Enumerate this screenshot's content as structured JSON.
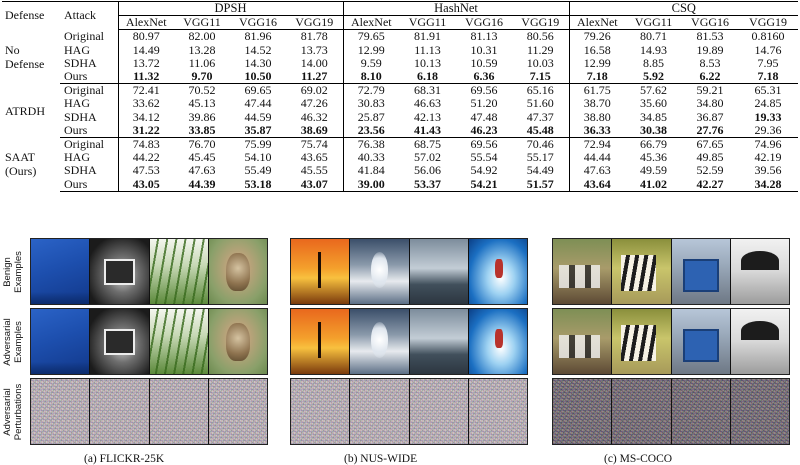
{
  "table": {
    "header": {
      "defense": "Defense",
      "attack": "Attack",
      "groups": [
        "DPSH",
        "HashNet",
        "CSQ"
      ],
      "models": [
        "AlexNet",
        "VGG11",
        "VGG16",
        "VGG19"
      ]
    },
    "blocks": [
      {
        "defense": "No Defense",
        "rows": [
          {
            "attack": "Original",
            "values": [
              "80.97",
              "82.00",
              "81.96",
              "81.78",
              "79.65",
              "81.91",
              "81.13",
              "80.56",
              "79.26",
              "80.71",
              "81.53",
              "0.8160"
            ],
            "bold": []
          },
          {
            "attack": "HAG",
            "values": [
              "14.49",
              "13.28",
              "14.52",
              "13.73",
              "12.99",
              "11.13",
              "10.31",
              "11.29",
              "16.58",
              "14.93",
              "19.89",
              "14.76"
            ],
            "bold": []
          },
          {
            "attack": "SDHA",
            "values": [
              "13.72",
              "11.06",
              "14.30",
              "14.00",
              "9.59",
              "10.13",
              "10.59",
              "10.03",
              "12.99",
              "8.85",
              "8.53",
              "7.95"
            ],
            "bold": []
          },
          {
            "attack": "Ours",
            "values": [
              "11.32",
              "9.70",
              "10.50",
              "11.27",
              "8.10",
              "6.18",
              "6.36",
              "7.15",
              "7.18",
              "5.92",
              "6.22",
              "7.18"
            ],
            "bold": [
              0,
              1,
              2,
              3,
              4,
              5,
              6,
              7,
              8,
              9,
              10,
              11
            ]
          }
        ]
      },
      {
        "defense": "ATRDH",
        "rows": [
          {
            "attack": "Original",
            "values": [
              "72.41",
              "70.52",
              "69.65",
              "69.02",
              "72.79",
              "68.31",
              "69.56",
              "65.16",
              "61.75",
              "57.62",
              "59.21",
              "65.31"
            ],
            "bold": []
          },
          {
            "attack": "HAG",
            "values": [
              "33.62",
              "45.13",
              "47.44",
              "47.26",
              "30.83",
              "46.63",
              "51.20",
              "51.60",
              "38.70",
              "35.60",
              "34.80",
              "24.85"
            ],
            "bold": []
          },
          {
            "attack": "SDHA",
            "values": [
              "34.12",
              "39.86",
              "44.59",
              "46.32",
              "25.87",
              "42.13",
              "47.48",
              "47.37",
              "38.80",
              "34.85",
              "36.87",
              "19.33"
            ],
            "bold": [
              11
            ]
          },
          {
            "attack": "Ours",
            "values": [
              "31.22",
              "33.85",
              "35.87",
              "38.69",
              "23.56",
              "41.43",
              "46.23",
              "45.48",
              "36.33",
              "30.38",
              "27.76",
              "29.36"
            ],
            "bold": [
              0,
              1,
              2,
              3,
              4,
              5,
              6,
              7,
              8,
              9,
              10
            ]
          }
        ]
      },
      {
        "defense": "SAAT (Ours)",
        "rows": [
          {
            "attack": "Original",
            "values": [
              "74.83",
              "76.70",
              "75.99",
              "75.74",
              "76.38",
              "68.75",
              "69.56",
              "70.46",
              "72.94",
              "66.79",
              "67.65",
              "74.96"
            ],
            "bold": []
          },
          {
            "attack": "HAG",
            "values": [
              "44.22",
              "45.45",
              "54.10",
              "43.65",
              "40.33",
              "57.02",
              "55.54",
              "55.17",
              "44.44",
              "45.36",
              "49.85",
              "42.19"
            ],
            "bold": []
          },
          {
            "attack": "SDHA",
            "values": [
              "47.53",
              "47.63",
              "55.49",
              "45.55",
              "41.84",
              "56.06",
              "54.92",
              "54.49",
              "47.63",
              "49.59",
              "52.59",
              "39.56"
            ],
            "bold": []
          },
          {
            "attack": "Ours",
            "values": [
              "43.05",
              "44.39",
              "53.18",
              "43.07",
              "39.00",
              "53.37",
              "54.21",
              "51.57",
              "43.64",
              "41.02",
              "42.27",
              "34.28"
            ],
            "bold": [
              0,
              1,
              2,
              3,
              4,
              5,
              6,
              7,
              8,
              9,
              10,
              11
            ]
          }
        ]
      }
    ]
  },
  "figure": {
    "row_labels": [
      "Benign Examples",
      "Adversarial Examples",
      "Adversarial Perturbations"
    ],
    "panels": [
      {
        "caption": "(a) FLICKR-25K",
        "images": [
          "blue wall",
          "framed picture",
          "grass stems",
          "owl"
        ]
      },
      {
        "caption": "(b) NUS-WIDE",
        "images": [
          "sunset statue",
          "wave lighthouse",
          "sea",
          "surfer"
        ]
      },
      {
        "caption": "(c) MS-COCO",
        "images": [
          "cows",
          "zebra",
          "bus",
          "umbrella"
        ]
      }
    ]
  }
}
